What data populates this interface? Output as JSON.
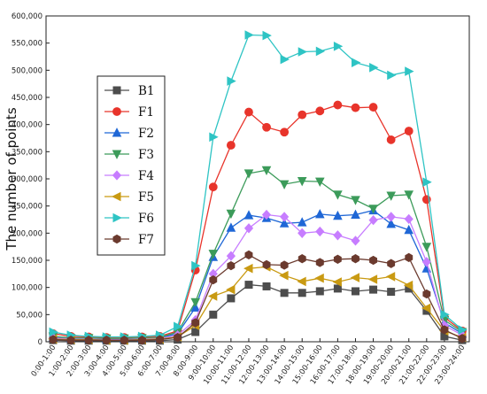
{
  "chart_data": {
    "type": "line",
    "ylabel": "The number of points",
    "xlabel": "",
    "title": "",
    "ylim": [
      0,
      600000
    ],
    "yticks": [
      0,
      50000,
      100000,
      150000,
      200000,
      250000,
      300000,
      350000,
      400000,
      450000,
      500000,
      550000,
      600000
    ],
    "ytick_labels": [
      "0",
      "50,000",
      "100,000",
      "150,000",
      "200,000",
      "250,000",
      "300,000",
      "350,000",
      "400,000",
      "450,000",
      "500,000",
      "550,000",
      "600,000"
    ],
    "categories": [
      "0:00-1:00",
      "1:00-2:00",
      "2:00-3:00",
      "3:00-4:00",
      "4:00-5:00",
      "5:00-6:00",
      "6:00-7:00",
      "7:00-8:00",
      "8:00-9:00",
      "9:00-10:00",
      "10:00-11:00",
      "11:00-12:00",
      "12:00-13:00",
      "13:00-14:00",
      "14:00-15:00",
      "15:00-16:00",
      "16:00-17:00",
      "17:00-18:00",
      "18:00-19:00",
      "19:00-20:00",
      "20:00-21:00",
      "21:00-22:00",
      "22:00-23:00",
      "23:00-24:00"
    ],
    "legend_position": "left-center",
    "grid": false,
    "series": [
      {
        "name": "B1",
        "color": "#4d4d4d",
        "marker": "square",
        "values": [
          3000,
          2000,
          2000,
          2000,
          2000,
          2000,
          2000,
          4000,
          18000,
          50000,
          80000,
          105000,
          102000,
          90000,
          90000,
          93000,
          98000,
          93000,
          96000,
          92000,
          98000,
          57000,
          10000,
          3000
        ]
      },
      {
        "name": "F1",
        "color": "#e8342b",
        "marker": "circle",
        "values": [
          15000,
          10000,
          9000,
          8000,
          8000,
          9000,
          10000,
          20000,
          132000,
          285000,
          362000,
          423000,
          395000,
          386000,
          418000,
          425000,
          436000,
          431000,
          432000,
          372000,
          388000,
          262000,
          45000,
          20000
        ]
      },
      {
        "name": "F2",
        "color": "#1f67d6",
        "marker": "triangle-up",
        "values": [
          8000,
          6000,
          6000,
          5000,
          5000,
          6000,
          7000,
          15000,
          63000,
          156000,
          210000,
          233000,
          228000,
          218000,
          220000,
          235000,
          232000,
          234000,
          242000,
          217000,
          206000,
          135000,
          35000,
          15000
        ]
      },
      {
        "name": "F3",
        "color": "#3c9b5a",
        "marker": "triangle-down",
        "values": [
          10000,
          7000,
          7000,
          6000,
          6000,
          7000,
          8000,
          18000,
          73000,
          162000,
          236000,
          310000,
          316000,
          290000,
          296000,
          295000,
          271000,
          261000,
          245000,
          269000,
          271000,
          175000,
          40000,
          18000
        ]
      },
      {
        "name": "F4",
        "color": "#c77dff",
        "marker": "diamond",
        "values": [
          7000,
          5000,
          5000,
          4000,
          4000,
          5000,
          6000,
          12000,
          40000,
          125000,
          158000,
          209000,
          234000,
          230000,
          200000,
          203000,
          196000,
          186000,
          224000,
          230000,
          226000,
          147000,
          30000,
          12000
        ]
      },
      {
        "name": "F5",
        "color": "#c99a12",
        "marker": "triangle-left",
        "values": [
          5000,
          4000,
          4000,
          3000,
          3000,
          4000,
          5000,
          9000,
          30000,
          84000,
          96000,
          135000,
          138000,
          122000,
          111000,
          117000,
          110000,
          118000,
          115000,
          120000,
          104000,
          62000,
          20000,
          8000
        ]
      },
      {
        "name": "F6",
        "color": "#2ec4c4",
        "marker": "triangle-right",
        "values": [
          18000,
          12000,
          10000,
          9000,
          9000,
          10000,
          12000,
          28000,
          140000,
          377000,
          480000,
          565000,
          564000,
          520000,
          534000,
          535000,
          544000,
          514000,
          505000,
          491000,
          498000,
          294000,
          50000,
          22000
        ]
      },
      {
        "name": "F7",
        "color": "#6b3a2e",
        "marker": "hexagon",
        "values": [
          4000,
          3000,
          3000,
          3000,
          3000,
          3000,
          4000,
          8000,
          35000,
          114000,
          140000,
          160000,
          142000,
          141000,
          153000,
          146000,
          152000,
          153000,
          150000,
          144000,
          155000,
          88000,
          22000,
          6000
        ]
      }
    ]
  }
}
